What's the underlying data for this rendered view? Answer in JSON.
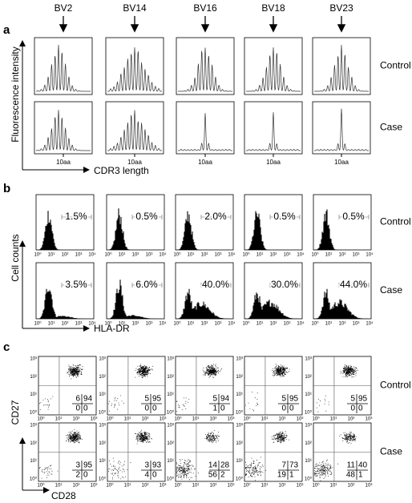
{
  "panel_a": {
    "label": "a",
    "columns": [
      "BV2",
      "BV14",
      "BV16",
      "BV18",
      "BV23"
    ],
    "rows": [
      "Control",
      "Case"
    ],
    "y_label": "Fluorescence intensity",
    "x_label": "CDR3 length",
    "x_tick": "10aa"
  },
  "panel_b": {
    "label": "b",
    "rows": [
      "Control",
      "Case"
    ],
    "y_label": "Cell counts",
    "x_label": "HLA-DR",
    "tick_labels": [
      "10⁰",
      "10¹",
      "10²",
      "10³",
      "10⁴"
    ],
    "percentages": [
      [
        "1.5%",
        "0.5%",
        "2.0%",
        "0.5%",
        "0.5%"
      ],
      [
        "3.5%",
        "6.0%",
        "40.0%",
        "30.0%",
        "44.0%"
      ]
    ]
  },
  "panel_c": {
    "label": "c",
    "rows": [
      "Control",
      "Case"
    ],
    "y_label": "CD27",
    "x_label": "CD28",
    "tick_labels": [
      "10⁰",
      "10¹",
      "10²",
      "10³"
    ],
    "quadrants": [
      [
        [
          6,
          94,
          0,
          0
        ],
        [
          5,
          95,
          0,
          0
        ],
        [
          5,
          94,
          1,
          0
        ],
        [
          5,
          95,
          0,
          0
        ],
        [
          5,
          95,
          0,
          0
        ]
      ],
      [
        [
          3,
          95,
          2,
          0
        ],
        [
          3,
          93,
          4,
          0
        ],
        [
          14,
          28,
          56,
          2
        ],
        [
          7,
          73,
          19,
          1
        ],
        [
          11,
          40,
          48,
          1
        ]
      ]
    ]
  }
}
